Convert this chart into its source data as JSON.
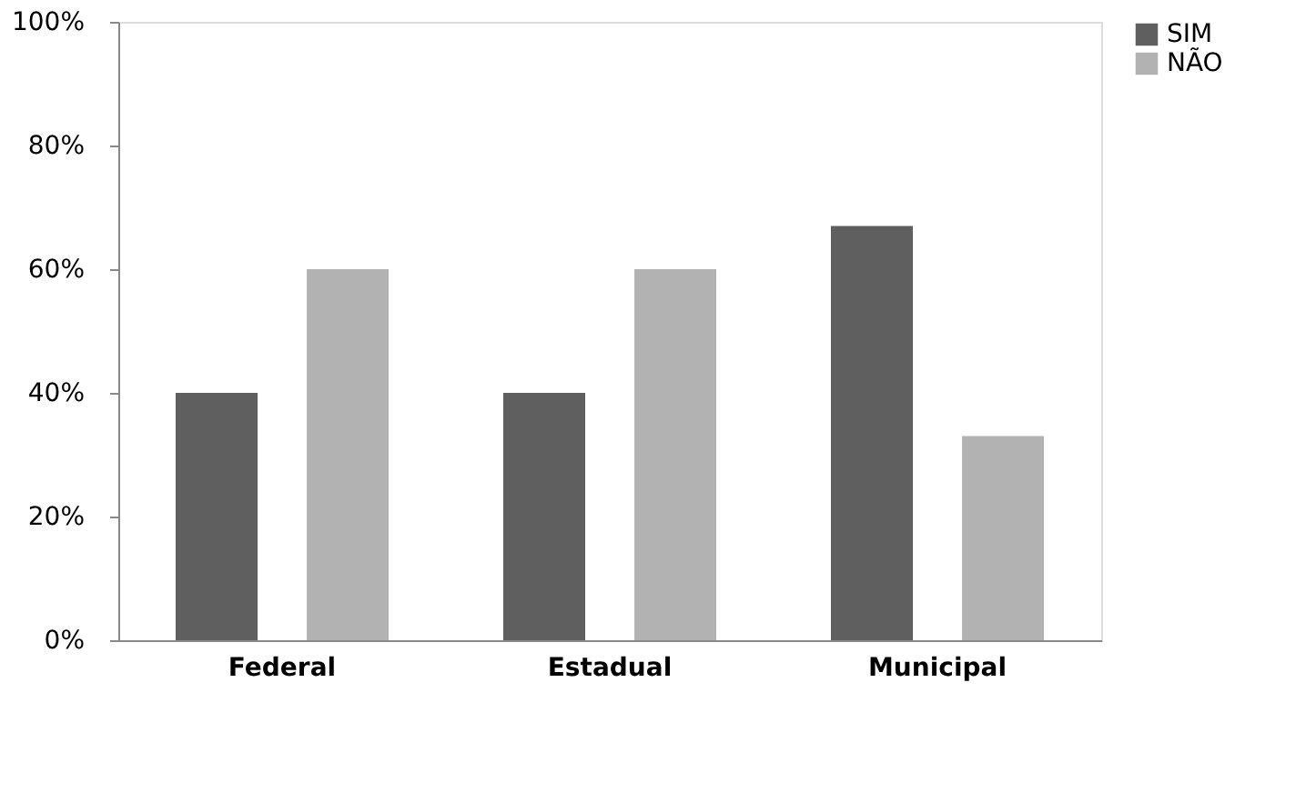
{
  "chart_data": {
    "type": "bar",
    "categories": [
      "Federal",
      "Estadual",
      "Municipal"
    ],
    "series": [
      {
        "name": "SIM",
        "color": "#5f5f5f",
        "values": [
          40,
          40,
          67
        ]
      },
      {
        "name": "NÃO",
        "color": "#b2b2b2",
        "values": [
          60,
          60,
          33
        ]
      }
    ],
    "ylim": [
      0,
      100
    ],
    "yticks": [
      {
        "value": 0,
        "label": "0%"
      },
      {
        "value": 20,
        "label": "20%"
      },
      {
        "value": 40,
        "label": "40%"
      },
      {
        "value": 60,
        "label": "60%"
      },
      {
        "value": 80,
        "label": "80%"
      },
      {
        "value": 100,
        "label": "100%"
      }
    ],
    "grid": false,
    "legend": "right"
  }
}
